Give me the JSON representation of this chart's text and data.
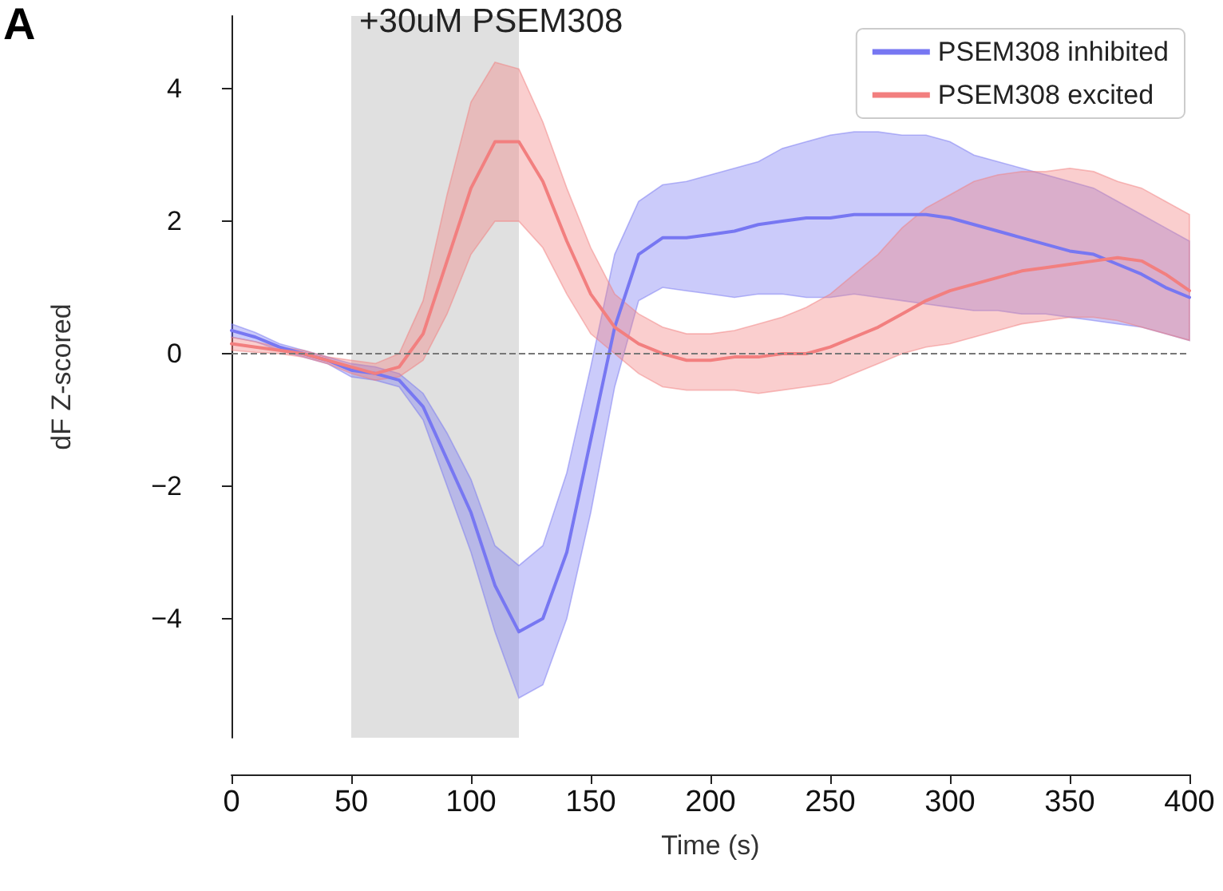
{
  "chart_data": {
    "type": "line",
    "xlabel": "Time (s)",
    "ylabel": "dF Z-scored",
    "annotations": [
      "A"
    ],
    "x": [
      0,
      10,
      20,
      30,
      40,
      50,
      60,
      70,
      80,
      90,
      100,
      110,
      120,
      130,
      140,
      150,
      160,
      170,
      180,
      190,
      200,
      210,
      220,
      230,
      240,
      250,
      260,
      270,
      280,
      290,
      300,
      310,
      320,
      330,
      340,
      350,
      360,
      370,
      380,
      390,
      400
    ],
    "series": [
      {
        "name": "PSEM308 inhibited",
        "color": "#7777f2",
        "values": [
          0.35,
          0.25,
          0.1,
          0.0,
          -0.1,
          -0.25,
          -0.3,
          -0.4,
          -0.8,
          -1.6,
          -2.4,
          -3.5,
          -4.2,
          -4.0,
          -3.0,
          -1.3,
          0.4,
          1.5,
          1.75,
          1.75,
          1.8,
          1.85,
          1.95,
          2.0,
          2.05,
          2.05,
          2.1,
          2.1,
          2.1,
          2.1,
          2.05,
          1.95,
          1.85,
          1.75,
          1.65,
          1.55,
          1.5,
          1.35,
          1.2,
          1.0,
          0.85
        ],
        "upper": [
          0.45,
          0.32,
          0.15,
          0.05,
          -0.05,
          -0.15,
          -0.2,
          -0.3,
          -0.6,
          -1.2,
          -1.9,
          -2.9,
          -3.2,
          -2.9,
          -1.8,
          -0.2,
          1.5,
          2.3,
          2.55,
          2.6,
          2.7,
          2.8,
          2.9,
          3.1,
          3.2,
          3.3,
          3.35,
          3.35,
          3.3,
          3.3,
          3.2,
          3.0,
          2.9,
          2.8,
          2.7,
          2.6,
          2.5,
          2.3,
          2.1,
          1.9,
          1.7
        ],
        "lower": [
          0.25,
          0.18,
          0.05,
          -0.05,
          -0.15,
          -0.35,
          -0.4,
          -0.5,
          -1.0,
          -2.0,
          -3.0,
          -4.2,
          -5.2,
          -5.0,
          -4.0,
          -2.4,
          -0.5,
          0.8,
          1.0,
          0.95,
          0.9,
          0.85,
          0.9,
          0.9,
          0.85,
          0.85,
          0.9,
          0.85,
          0.8,
          0.75,
          0.7,
          0.65,
          0.65,
          0.6,
          0.6,
          0.55,
          0.5,
          0.45,
          0.4,
          0.3,
          0.2
        ]
      },
      {
        "name": "PSEM308 excited",
        "color": "#f27f7f",
        "values": [
          0.15,
          0.1,
          0.05,
          0.0,
          -0.1,
          -0.2,
          -0.3,
          -0.2,
          0.3,
          1.4,
          2.5,
          3.2,
          3.2,
          2.6,
          1.7,
          0.9,
          0.4,
          0.15,
          0.0,
          -0.1,
          -0.1,
          -0.05,
          -0.05,
          0.0,
          0.0,
          0.1,
          0.25,
          0.4,
          0.6,
          0.8,
          0.95,
          1.05,
          1.15,
          1.25,
          1.3,
          1.35,
          1.4,
          1.45,
          1.4,
          1.2,
          0.95
        ],
        "upper": [
          0.25,
          0.18,
          0.1,
          0.05,
          -0.05,
          -0.1,
          -0.15,
          0.0,
          0.8,
          2.4,
          3.8,
          4.4,
          4.3,
          3.5,
          2.5,
          1.6,
          0.9,
          0.6,
          0.4,
          0.3,
          0.3,
          0.35,
          0.45,
          0.55,
          0.7,
          0.9,
          1.2,
          1.5,
          1.9,
          2.2,
          2.4,
          2.6,
          2.7,
          2.75,
          2.75,
          2.8,
          2.75,
          2.6,
          2.5,
          2.3,
          2.1
        ],
        "lower": [
          0.05,
          0.02,
          0.0,
          -0.05,
          -0.15,
          -0.3,
          -0.4,
          -0.35,
          -0.1,
          0.6,
          1.5,
          2.0,
          2.0,
          1.6,
          0.9,
          0.3,
          0.0,
          -0.3,
          -0.5,
          -0.55,
          -0.55,
          -0.55,
          -0.6,
          -0.55,
          -0.5,
          -0.45,
          -0.3,
          -0.15,
          0.0,
          0.1,
          0.15,
          0.25,
          0.35,
          0.45,
          0.5,
          0.55,
          0.55,
          0.5,
          0.4,
          0.3,
          0.2
        ]
      }
    ],
    "xlim": [
      0,
      400
    ],
    "xticks": [
      0,
      50,
      100,
      150,
      200,
      250,
      300,
      350,
      400
    ],
    "ylim": [
      -5.8,
      5.1
    ],
    "yticks": [
      -4,
      -2,
      0,
      2,
      4
    ],
    "ref_lines": [
      {
        "axis": "y",
        "value": 0,
        "color": "#777777",
        "line_style": "dashed"
      }
    ],
    "bands": [
      {
        "axis": "x",
        "from": 50,
        "to": 120,
        "label": "+30uM PSEM308",
        "color": "#e0e0e0"
      }
    ],
    "grid": false,
    "legend": "top right",
    "marker": "none",
    "line_style": "solid"
  }
}
